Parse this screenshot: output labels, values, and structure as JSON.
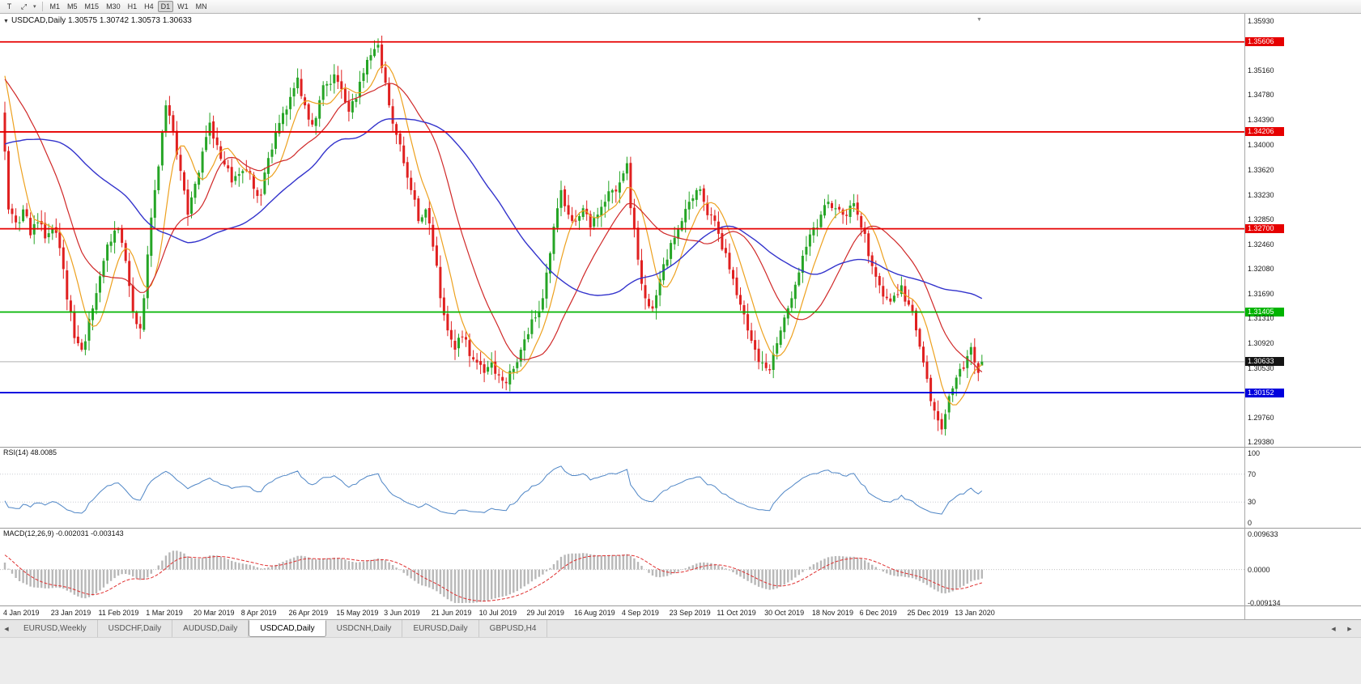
{
  "toolbar": {
    "tools": [
      {
        "glyph": "T",
        "name": "text-tool-button"
      },
      {
        "glyph": "⤢",
        "name": "crosshair-tool-button"
      }
    ],
    "caret": "▾",
    "timeframes": [
      "M1",
      "M5",
      "M15",
      "M30",
      "H1",
      "H4",
      "D1",
      "W1",
      "MN"
    ],
    "active_timeframe": "D1"
  },
  "chart_header": {
    "collapse_icon": "▼",
    "text": "USDCAD,Daily  1.30575 1.30742 1.30573 1.30633"
  },
  "icons": {
    "scroll_left": "◀",
    "scroll_right": "▶"
  },
  "chart_data": {
    "type": "candlestick",
    "symbol": "USDCAD",
    "timeframe": "Daily",
    "ohlc_display": {
      "open": 1.30575,
      "high": 1.30742,
      "low": 1.30573,
      "close": 1.30633
    },
    "count": 268,
    "y_range": [
      1.2936,
      1.3598
    ],
    "shift_marker": "▼",
    "price_ticks": [
      "1.35930",
      "1.35550",
      "1.35160",
      "1.34780",
      "1.34390",
      "1.34000",
      "1.33620",
      "1.33230",
      "1.32850",
      "1.32460",
      "1.32080",
      "1.31690",
      "1.31310",
      "1.30920",
      "1.30530",
      "1.30140",
      "1.29760",
      "1.29380"
    ],
    "x_labels": [
      "4 Jan 2019",
      "23 Jan 2019",
      "11 Feb 2019",
      "1 Mar 2019",
      "20 Mar 2019",
      "8 Apr 2019",
      "26 Apr 2019",
      "15 May 2019",
      "3 Jun 2019",
      "21 Jun 2019",
      "10 Jul 2019",
      "29 Jul 2019",
      "16 Aug 2019",
      "4 Sep 2019",
      "23 Sep 2019",
      "11 Oct 2019",
      "30 Oct 2019",
      "18 Nov 2019",
      "6 Dec 2019",
      "25 Dec 2019",
      "13 Jan 2020"
    ],
    "x_label_step": 13,
    "horizontal_lines": [
      {
        "price": 1.35606,
        "label": "1.35606",
        "color": "#e60000"
      },
      {
        "price": 1.34206,
        "label": "1.34206",
        "color": "#e60000"
      },
      {
        "price": 1.327,
        "label": "1.32700",
        "color": "#e60000"
      },
      {
        "price": 1.31405,
        "label": "1.31405",
        "color": "#00b400"
      },
      {
        "price": 1.30152,
        "label": "1.30152",
        "color": "#0000dd"
      }
    ],
    "current_price": {
      "price": 1.30633,
      "label": "1.30633",
      "badge_color": "#141414",
      "line_color": "#b0b0b0"
    },
    "candle_colors": {
      "bull": "#26a526",
      "bear": "#e02020"
    },
    "moving_averages": [
      {
        "period": 8,
        "color": "#eda11f"
      },
      {
        "period": 21,
        "color": "#d02828"
      },
      {
        "period": 50,
        "color": "#3333cc"
      }
    ],
    "anchors": [
      [
        -55,
        1.317
      ],
      [
        -40,
        1.328
      ],
      [
        -25,
        1.342
      ],
      [
        -10,
        1.353
      ],
      [
        -4,
        1.356
      ],
      [
        -2,
        1.349
      ],
      [
        0,
        1.339
      ],
      [
        1,
        1.33
      ],
      [
        3,
        1.328
      ],
      [
        5,
        1.33
      ],
      [
        7,
        1.326
      ],
      [
        9,
        1.328
      ],
      [
        11,
        1.3255
      ],
      [
        13,
        1.327
      ],
      [
        15,
        1.324
      ],
      [
        17,
        1.316
      ],
      [
        19,
        1.31
      ],
      [
        21,
        1.3082
      ],
      [
        23,
        1.313
      ],
      [
        25,
        1.317
      ],
      [
        27,
        1.322
      ],
      [
        29,
        1.325
      ],
      [
        31,
        1.327
      ],
      [
        33,
        1.322
      ],
      [
        35,
        1.314
      ],
      [
        37,
        1.3115
      ],
      [
        39,
        1.323
      ],
      [
        41,
        1.333
      ],
      [
        44,
        1.3462
      ],
      [
        46,
        1.342
      ],
      [
        48,
        1.336
      ],
      [
        50,
        1.3292
      ],
      [
        52,
        1.334
      ],
      [
        54,
        1.339
      ],
      [
        56,
        1.3435
      ],
      [
        58,
        1.34
      ],
      [
        60,
        1.337
      ],
      [
        62,
        1.3342
      ],
      [
        64,
        1.3355
      ],
      [
        66,
        1.336
      ],
      [
        68,
        1.3332
      ],
      [
        70,
        1.3322
      ],
      [
        72,
        1.338
      ],
      [
        74,
        1.342
      ],
      [
        76,
        1.345
      ],
      [
        78,
        1.3475
      ],
      [
        80,
        1.3505
      ],
      [
        82,
        1.3462
      ],
      [
        84,
        1.3432
      ],
      [
        86,
        1.347
      ],
      [
        88,
        1.3495
      ],
      [
        90,
        1.351
      ],
      [
        92,
        1.3487
      ],
      [
        94,
        1.3452
      ],
      [
        96,
        1.3472
      ],
      [
        98,
        1.3512
      ],
      [
        100,
        1.354
      ],
      [
        102,
        1.3556
      ],
      [
        103,
        1.352
      ],
      [
        105,
        1.3462
      ],
      [
        107,
        1.3416
      ],
      [
        109,
        1.3372
      ],
      [
        111,
        1.333
      ],
      [
        113,
        1.3282
      ],
      [
        115,
        1.33
      ],
      [
        117,
        1.3242
      ],
      [
        119,
        1.3162
      ],
      [
        121,
        1.3112
      ],
      [
        123,
        1.3082
      ],
      [
        125,
        1.3102
      ],
      [
        127,
        1.3072
      ],
      [
        129,
        1.3062
      ],
      [
        131,
        1.3046
      ],
      [
        133,
        1.3062
      ],
      [
        135,
        1.3042
      ],
      [
        137,
        1.303
      ],
      [
        139,
        1.3052
      ],
      [
        141,
        1.3082
      ],
      [
        143,
        1.3106
      ],
      [
        145,
        1.3132
      ],
      [
        147,
        1.3162
      ],
      [
        149,
        1.3232
      ],
      [
        151,
        1.3302
      ],
      [
        152,
        1.333
      ],
      [
        154,
        1.3292
      ],
      [
        156,
        1.3282
      ],
      [
        158,
        1.3302
      ],
      [
        160,
        1.3272
      ],
      [
        162,
        1.3292
      ],
      [
        164,
        1.3312
      ],
      [
        166,
        1.333
      ],
      [
        168,
        1.3342
      ],
      [
        170,
        1.3372
      ],
      [
        171,
        1.3302
      ],
      [
        173,
        1.3222
      ],
      [
        175,
        1.3162
      ],
      [
        177,
        1.3146
      ],
      [
        179,
        1.3192
      ],
      [
        181,
        1.3222
      ],
      [
        183,
        1.3256
      ],
      [
        185,
        1.3282
      ],
      [
        187,
        1.3312
      ],
      [
        189,
        1.333
      ],
      [
        191,
        1.3312
      ],
      [
        193,
        1.3292
      ],
      [
        195,
        1.3262
      ],
      [
        197,
        1.3232
      ],
      [
        199,
        1.3192
      ],
      [
        201,
        1.3152
      ],
      [
        203,
        1.3112
      ],
      [
        205,
        1.3082
      ],
      [
        207,
        1.3062
      ],
      [
        209,
        1.305
      ],
      [
        211,
        1.3092
      ],
      [
        213,
        1.3132
      ],
      [
        215,
        1.3162
      ],
      [
        217,
        1.3202
      ],
      [
        219,
        1.3242
      ],
      [
        221,
        1.3272
      ],
      [
        223,
        1.3292
      ],
      [
        225,
        1.3312
      ],
      [
        227,
        1.3302
      ],
      [
        229,
        1.3292
      ],
      [
        231,
        1.3306
      ],
      [
        233,
        1.3292
      ],
      [
        235,
        1.3262
      ],
      [
        237,
        1.3212
      ],
      [
        239,
        1.3182
      ],
      [
        241,
        1.3162
      ],
      [
        243,
        1.3166
      ],
      [
        245,
        1.3182
      ],
      [
        247,
        1.3152
      ],
      [
        249,
        1.3112
      ],
      [
        251,
        1.3062
      ],
      [
        253,
        1.3002
      ],
      [
        255,
        1.2972
      ],
      [
        256,
        1.2958
      ],
      [
        257,
        1.2982
      ],
      [
        259,
        1.3022
      ],
      [
        261,
        1.3052
      ],
      [
        263,
        1.3072
      ],
      [
        264,
        1.3086
      ],
      [
        265,
        1.3062
      ],
      [
        266,
        1.3046
      ],
      [
        267,
        1.30633
      ]
    ],
    "extremes": {
      "21": {
        "low": 1.3079
      },
      "44": {
        "high": 1.347
      },
      "102": {
        "high": 1.3566
      },
      "137": {
        "low": 1.3019
      },
      "170": {
        "high": 1.3382
      },
      "256": {
        "low": 1.295
      }
    },
    "indicators": {
      "rsi": {
        "label": "RSI(14)",
        "value": "48.0085",
        "period": 14,
        "levels": [
          70,
          30
        ],
        "axis": [
          "100",
          "70",
          "30",
          "0"
        ],
        "range": [
          0,
          100
        ],
        "color": "#4f86c6",
        "level_color": "#c8ccd4"
      },
      "macd": {
        "label": "MACD(12,26,9)",
        "value": "-0.002031 -0.003143",
        "fast": 12,
        "slow": 26,
        "signal": 9,
        "axis": [
          "0.009633",
          "0.0000",
          "-0.009134"
        ],
        "range": [
          -0.009134,
          0.009633
        ],
        "bar_color": "#b8b8b8",
        "signal_color": "#e03030",
        "zero_color": "#c0c0c0"
      }
    }
  },
  "tabs": {
    "items": [
      "EURUSD,Weekly",
      "USDCHF,Daily",
      "AUDUSD,Daily",
      "USDCAD,Daily",
      "USDCNH,Daily",
      "EURUSD,Daily",
      "GBPUSD,H4"
    ],
    "active": "USDCAD,Daily"
  }
}
